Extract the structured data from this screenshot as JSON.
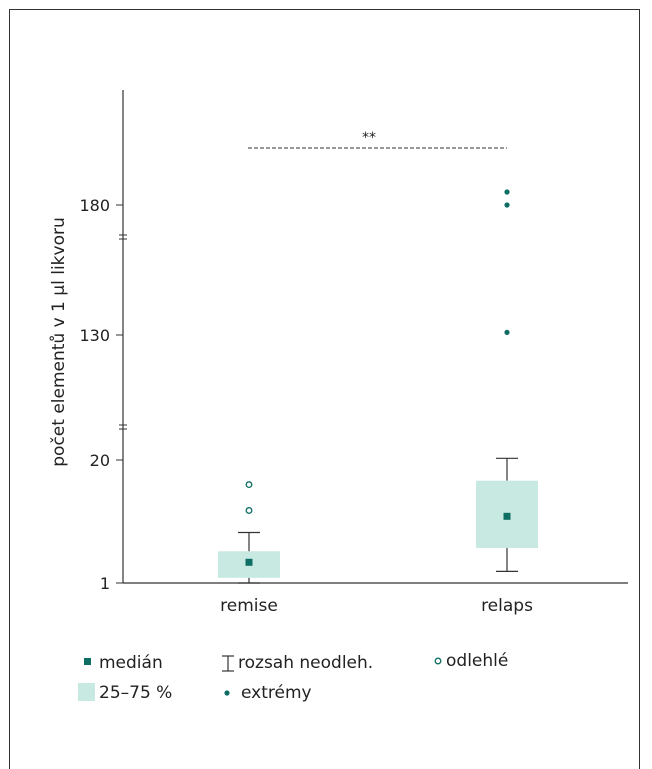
{
  "chart_data": {
    "type": "box",
    "ylabel": "počet elementů v 1 µl likvoru",
    "ytick_labels": [
      "1",
      "20",
      "130",
      "180"
    ],
    "axis_break_after": [
      "20",
      "130"
    ],
    "categories": [
      "remise",
      "relaps"
    ],
    "significance": "**",
    "series": [
      {
        "category": "remise",
        "q1": 1.8,
        "median": 4.2,
        "q3": 5.9,
        "whisker_low": 1,
        "whisker_high": 8.8,
        "outliers": [
          12.2,
          16.2
        ],
        "extremes": []
      },
      {
        "category": "relaps",
        "q1": 6.4,
        "median": 11.3,
        "q3": 16.8,
        "whisker_low": 2.8,
        "whisker_high": 21.5,
        "outliers": [],
        "extremes": [
          131,
          180,
          185
        ]
      }
    ],
    "colors": {
      "box_fill": "#c8e8e2",
      "median_marker": "#0e6e63",
      "extreme_point": "#0e6e63",
      "outlier_point": "#0e6e63",
      "axis": "#333333"
    }
  },
  "legend": {
    "median": "medián",
    "range": "rozsah neodleh.",
    "outliers": "odlehlé",
    "box": "25–75 %",
    "extremes": "extrémy"
  }
}
